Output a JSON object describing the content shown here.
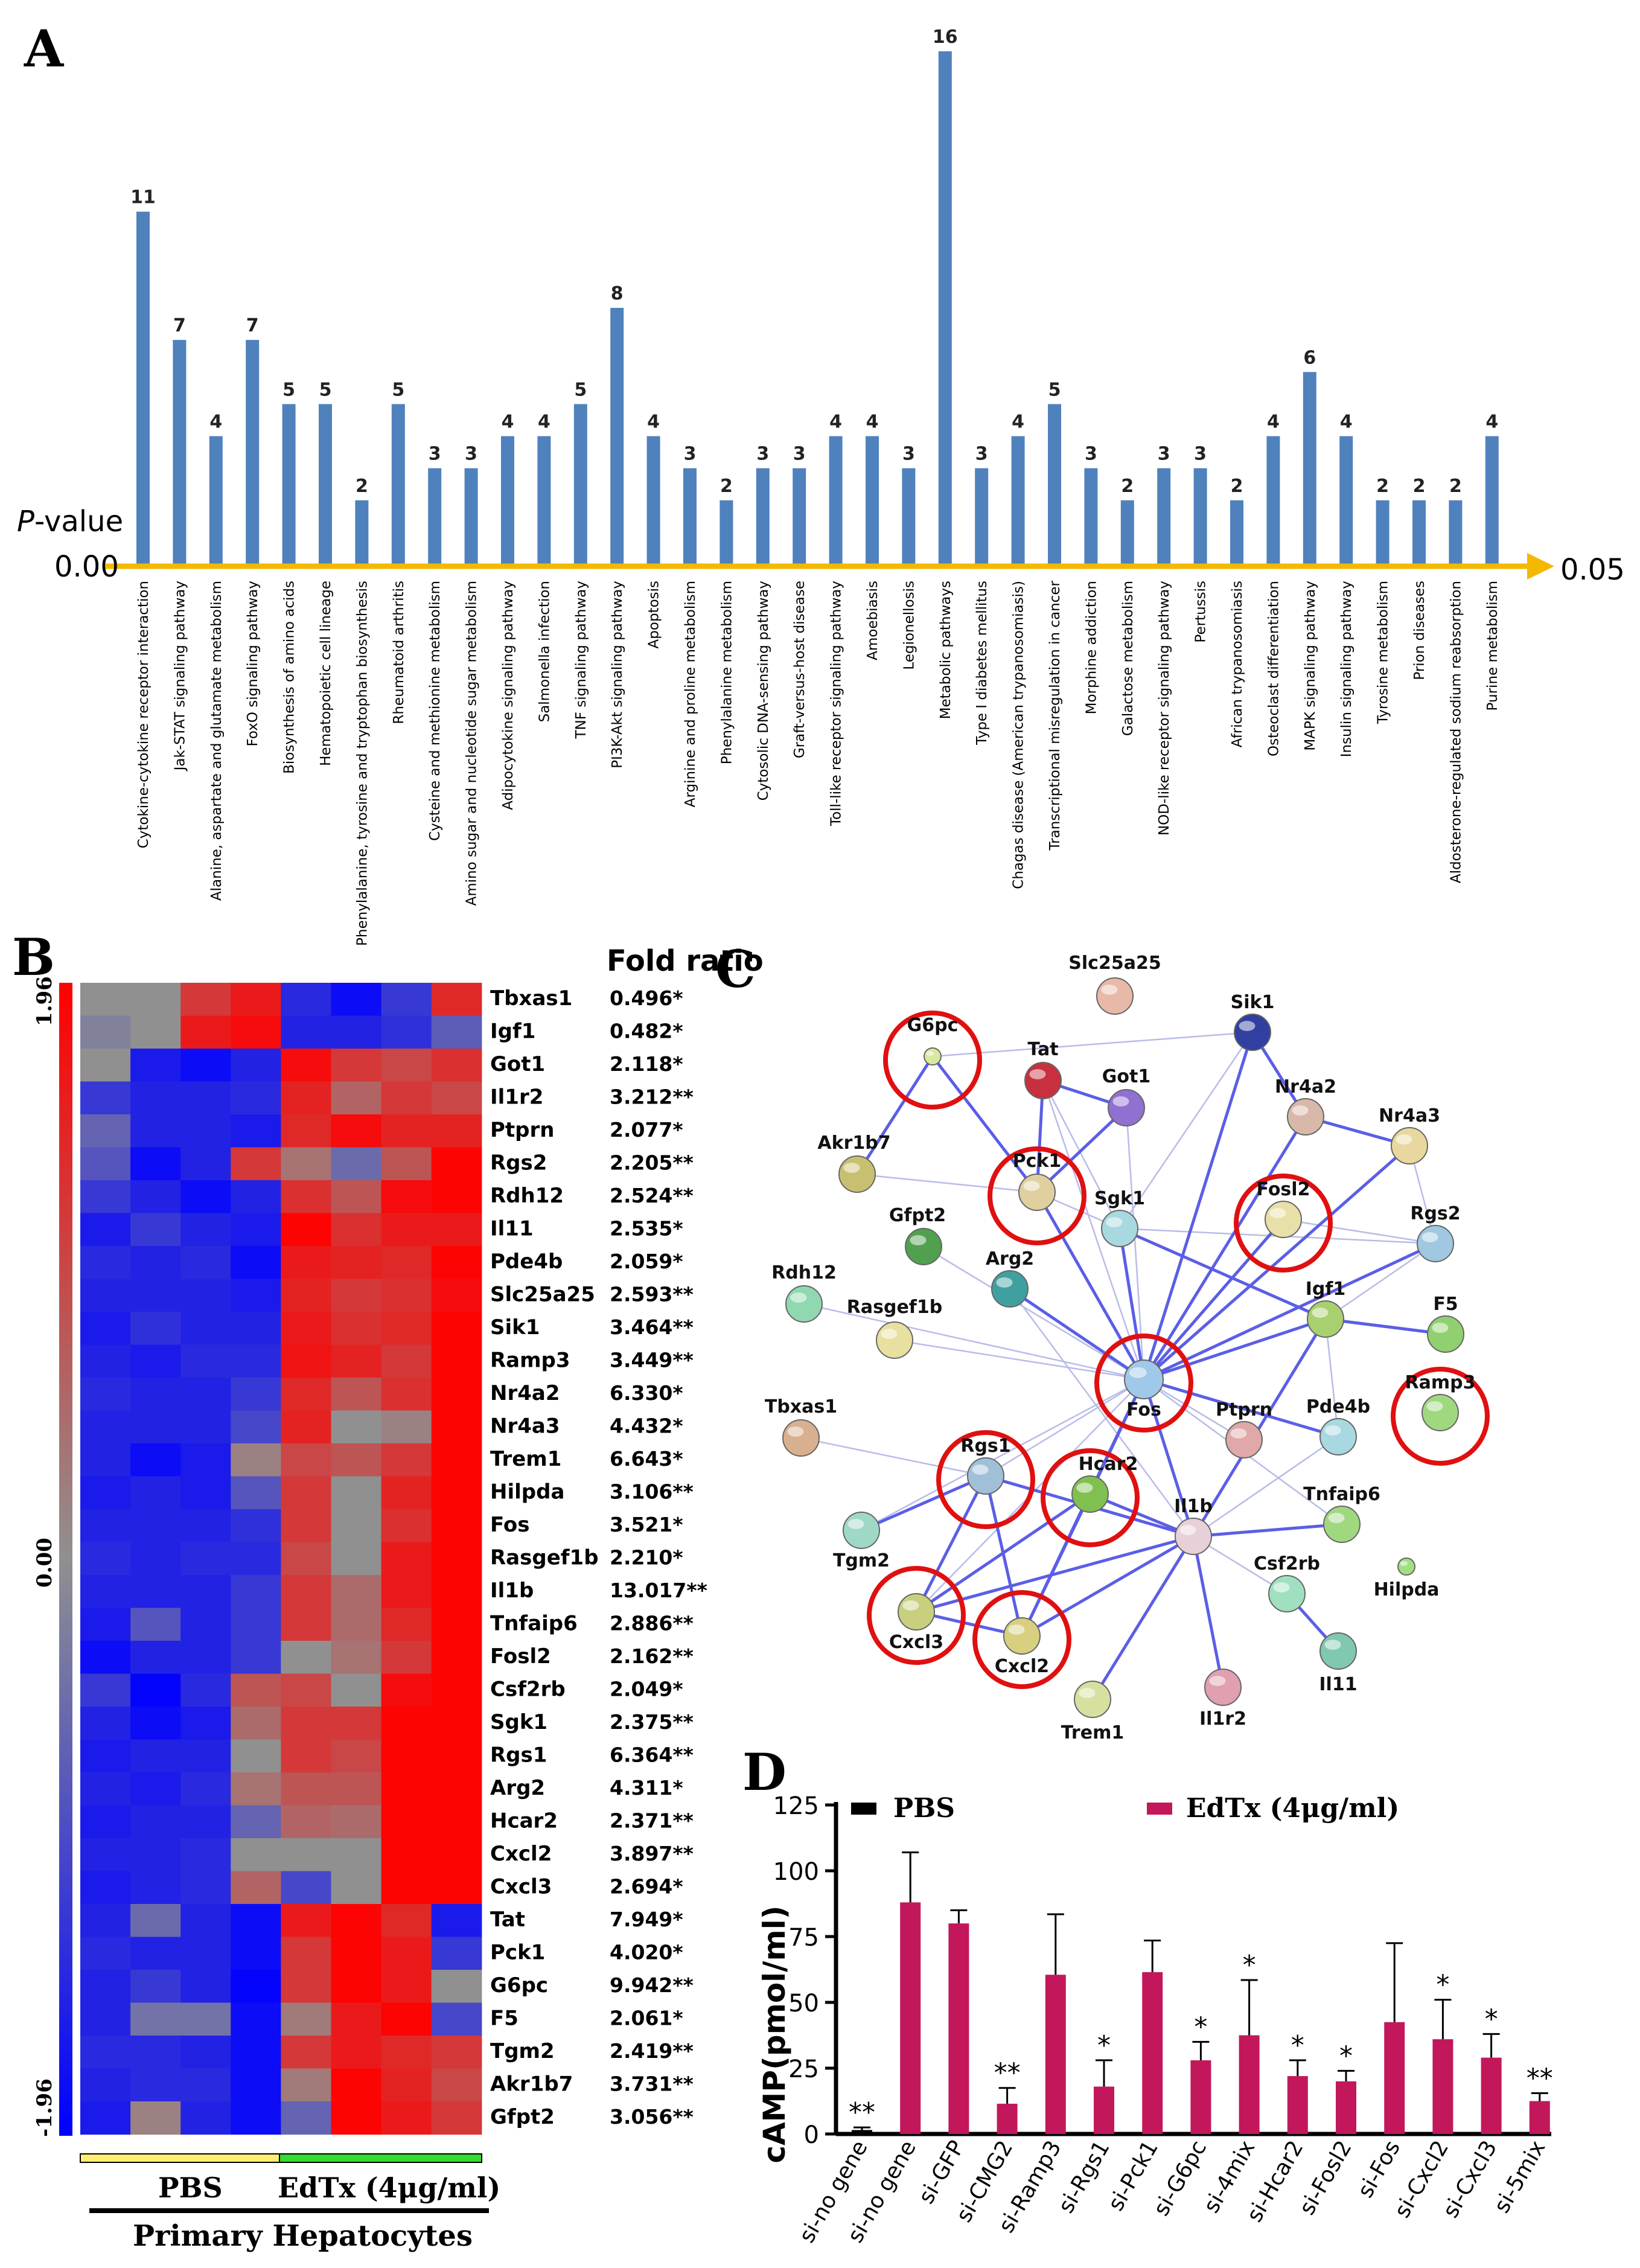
{
  "panelA": {
    "letter": "A",
    "y_label_prefix": "P",
    "y_label_suffix": "-value",
    "axis_start": "0.00",
    "axis_end": "0.05",
    "chart_data": {
      "type": "bar",
      "title": "",
      "xlabel": "",
      "ylabel": "P-value",
      "categories": [
        "Cytokine-cytokine receptor interaction",
        "Jak-STAT signaling pathway",
        "Alanine, aspartate and glutamate metabolism",
        "FoxO signaling pathway",
        "Biosynthesis of amino acids",
        "Hematopoietic cell lineage",
        "Phenylalanine, tyrosine and tryptophan biosynthesis",
        "Rheumatoid arthritis",
        "Cysteine and methionine metabolism",
        "Amino sugar and nucleotide sugar metabolism",
        "Adipocytokine signaling pathway",
        "Salmonella infection",
        "TNF signaling pathway",
        "PI3K-Akt signaling pathway",
        "Apoptosis",
        "Arginine and proline metabolism",
        "Phenylalanine metabolism",
        "Cytosolic DNA-sensing pathway",
        "Graft-versus-host disease",
        "Toll-like receptor signaling pathway",
        "Amoebiasis",
        "Legionellosis",
        "Metabolic pathways",
        "Type I diabetes mellitus",
        "Chagas disease (American trypanosomiasis)",
        "Transcriptional misregulation in cancer",
        "Morphine addiction",
        "Galactose metabolism",
        "NOD-like receptor signaling pathway",
        "Pertussis",
        "African trypanosomiasis",
        "Osteoclast differentiation",
        "MAPK signaling pathway",
        "Insulin signaling pathway",
        "Tyrosine metabolism",
        "Prion diseases",
        "Aldosterone-regulated sodium reabsorption",
        "Purine metabolism"
      ],
      "values": [
        11,
        7,
        4,
        7,
        5,
        5,
        2,
        5,
        3,
        3,
        4,
        4,
        5,
        8,
        4,
        3,
        2,
        3,
        3,
        4,
        4,
        3,
        16,
        3,
        4,
        5,
        3,
        2,
        3,
        3,
        2,
        4,
        6,
        4,
        2,
        2,
        2,
        4
      ],
      "labels": [
        "11",
        "7",
        "4",
        "7",
        "5",
        "5",
        "2",
        "5",
        "3",
        "3",
        "4",
        "4",
        "5",
        "8",
        "4",
        "3",
        "2",
        "3",
        "3",
        "4",
        "4",
        "3",
        "16",
        "3",
        "4",
        "5",
        "3",
        "2",
        "3",
        "3",
        "2",
        "4",
        "6",
        "4",
        "2",
        "2",
        "2",
        "4"
      ],
      "ylim": [
        0,
        16
      ],
      "color": "#4f81bd"
    }
  },
  "panelB": {
    "letter": "B",
    "header": "Fold ratio",
    "scale_top": "1.96",
    "scale_mid": "0.00",
    "scale_bottom": "-1.96",
    "group_pbs": "PBS",
    "group_edtx": "EdTx (4μg/ml)",
    "cell_label": "Primary Hepatocytes",
    "genes": [
      "Tbxas1",
      "Igf1",
      "Got1",
      "Il1r2",
      "Ptprn",
      "Rgs2",
      "Rdh12",
      "Il11",
      "Pde4b",
      "Slc25a25",
      "Sik1",
      "Ramp3",
      "Nr4a2",
      "Nr4a3",
      "Trem1",
      "Hilpda",
      "Fos",
      "Rasgef1b",
      "Il1b",
      "Tnfaip6",
      "Fosl2",
      "Csf2rb",
      "Sgk1",
      "Rgs1",
      "Arg2",
      "Hcar2",
      "Cxcl2",
      "Cxcl3",
      "Tat",
      "Pck1",
      "G6pc",
      "F5",
      "Tgm2",
      "Akr1b7",
      "Gfpt2"
    ],
    "fold_ratios": [
      "0.496*",
      "0.482*",
      "2.118*",
      "3.212**",
      "2.077*",
      "2.205**",
      "2.524**",
      "2.535*",
      "2.059*",
      "2.593**",
      "3.464**",
      "3.449**",
      "6.330*",
      "4.432*",
      "6.643*",
      "3.106**",
      "3.521*",
      "2.210*",
      "13.017**",
      "2.886**",
      "2.162**",
      "2.049*",
      "2.375**",
      "6.364**",
      "4.311*",
      "2.371**",
      "3.897**",
      "2.694*",
      "7.949*",
      "4.020*",
      "9.942**",
      "2.061*",
      "2.419**",
      "3.731**",
      "3.056**"
    ],
    "heat": [
      [
        0,
        0,
        1.2,
        1.6,
        -1.4,
        -1.8,
        -1.2,
        1.4
      ],
      [
        -0.2,
        0,
        1.6,
        1.8,
        -1.5,
        -1.5,
        -1.3,
        -0.7
      ],
      [
        0,
        -1.6,
        -1.8,
        -1.5,
        1.8,
        1.2,
        1.0,
        1.3
      ],
      [
        -1.2,
        -1.5,
        -1.5,
        -1.4,
        1.5,
        0.6,
        1.2,
        1.0
      ],
      [
        -0.6,
        -1.5,
        -1.5,
        -1.6,
        1.4,
        1.8,
        1.5,
        1.5
      ],
      [
        -0.8,
        -1.8,
        -1.5,
        1.2,
        0.4,
        -0.5,
        0.8,
        1.9
      ],
      [
        -1.2,
        -1.5,
        -1.8,
        -1.5,
        1.3,
        0.8,
        1.8,
        1.9
      ],
      [
        -1.6,
        -1.2,
        -1.5,
        -1.6,
        1.9,
        1.3,
        1.6,
        1.6
      ],
      [
        -1.4,
        -1.5,
        -1.4,
        -1.8,
        1.6,
        1.5,
        1.4,
        1.9
      ],
      [
        -1.5,
        -1.5,
        -1.5,
        -1.6,
        1.5,
        1.2,
        1.3,
        1.8
      ],
      [
        -1.6,
        -1.3,
        -1.5,
        -1.5,
        1.6,
        1.3,
        1.4,
        1.9
      ],
      [
        -1.5,
        -1.6,
        -1.4,
        -1.4,
        1.7,
        1.5,
        1.2,
        1.9
      ],
      [
        -1.4,
        -1.5,
        -1.5,
        -1.2,
        1.4,
        0.8,
        1.3,
        1.9
      ],
      [
        -1.5,
        -1.5,
        -1.5,
        -1.0,
        1.5,
        0.0,
        0.2,
        1.9
      ],
      [
        -1.5,
        -1.8,
        -1.6,
        0.2,
        1.0,
        0.8,
        1.2,
        1.9
      ],
      [
        -1.6,
        -1.5,
        -1.6,
        -0.8,
        1.2,
        0.0,
        1.5,
        1.9
      ],
      [
        -1.5,
        -1.5,
        -1.5,
        -1.3,
        1.2,
        0.0,
        1.3,
        1.9
      ],
      [
        -1.4,
        -1.5,
        -1.4,
        -1.4,
        1.0,
        0.0,
        1.6,
        1.9
      ],
      [
        -1.5,
        -1.5,
        -1.5,
        -1.2,
        1.2,
        0.5,
        1.6,
        1.9
      ],
      [
        -1.6,
        -0.8,
        -1.5,
        -1.2,
        1.2,
        0.5,
        1.4,
        1.9
      ],
      [
        -1.8,
        -1.5,
        -1.5,
        -1.2,
        0.0,
        0.4,
        1.2,
        1.9
      ],
      [
        -1.2,
        -1.9,
        -1.4,
        0.8,
        1.0,
        0.0,
        1.8,
        1.9
      ],
      [
        -1.5,
        -1.8,
        -1.6,
        0.5,
        1.2,
        1.2,
        1.9,
        1.9
      ],
      [
        -1.6,
        -1.5,
        -1.5,
        0.0,
        1.2,
        1.0,
        1.9,
        1.9
      ],
      [
        -1.5,
        -1.6,
        -1.4,
        0.4,
        0.8,
        0.8,
        1.9,
        1.9
      ],
      [
        -1.6,
        -1.5,
        -1.5,
        -0.6,
        0.6,
        0.5,
        1.9,
        1.9
      ],
      [
        -1.5,
        -1.5,
        -1.4,
        0.0,
        0.0,
        0.0,
        1.9,
        1.9
      ],
      [
        -1.6,
        -1.5,
        -1.4,
        0.6,
        -1.0,
        0.0,
        1.9,
        1.9
      ],
      [
        -1.5,
        -0.5,
        -1.5,
        -1.8,
        1.6,
        1.9,
        1.4,
        -1.6
      ],
      [
        -1.4,
        -1.5,
        -1.5,
        -1.8,
        1.2,
        1.9,
        1.6,
        -1.2
      ],
      [
        -1.5,
        -1.2,
        -1.5,
        -1.9,
        1.2,
        1.9,
        1.6,
        0.0
      ],
      [
        -1.5,
        -0.4,
        -0.4,
        -1.8,
        0.3,
        1.6,
        1.9,
        -1.0
      ],
      [
        -1.4,
        -1.4,
        -1.5,
        -1.8,
        1.2,
        1.6,
        1.4,
        1.2
      ],
      [
        -1.5,
        -1.4,
        -1.4,
        -1.8,
        0.3,
        1.9,
        1.5,
        1.0
      ],
      [
        -1.6,
        0.2,
        -1.5,
        -1.8,
        -0.6,
        1.9,
        1.6,
        1.2
      ]
    ]
  },
  "panelC": {
    "letter": "C",
    "nodes": [
      {
        "id": "Slc25a25",
        "color": "#e8b8a8",
        "circled": false
      },
      {
        "id": "Sik1",
        "color": "#3040a0",
        "circled": false
      },
      {
        "id": "G6pc",
        "color": "#d8e8a0",
        "circled": true
      },
      {
        "id": "Tat",
        "color": "#c83040",
        "circled": false
      },
      {
        "id": "Got1",
        "color": "#9070d0",
        "circled": false
      },
      {
        "id": "Nr4a2",
        "color": "#d8b8a8",
        "circled": false
      },
      {
        "id": "Nr4a3",
        "color": "#e8d8a0",
        "circled": false
      },
      {
        "id": "Akr1b7",
        "color": "#c8c070",
        "circled": false
      },
      {
        "id": "Pck1",
        "color": "#e0d0a0",
        "circled": true
      },
      {
        "id": "Sgk1",
        "color": "#a8d8e0",
        "circled": false
      },
      {
        "id": "Fosl2",
        "color": "#e8e0a8",
        "circled": true
      },
      {
        "id": "Rgs2",
        "color": "#a0c8e0",
        "circled": false
      },
      {
        "id": "Gfpt2",
        "color": "#50a050",
        "circled": false
      },
      {
        "id": "Rdh12",
        "color": "#90d8b0",
        "circled": false
      },
      {
        "id": "Arg2",
        "color": "#40a0a0",
        "circled": false
      },
      {
        "id": "Igf1",
        "color": "#a8d070",
        "circled": false
      },
      {
        "id": "F5",
        "color": "#90d070",
        "circled": false
      },
      {
        "id": "Rasgef1b",
        "color": "#e8e0a0",
        "circled": false
      },
      {
        "id": "Fos",
        "color": "#a0c8e8",
        "circled": true
      },
      {
        "id": "Ramp3",
        "color": "#a0d880",
        "circled": true
      },
      {
        "id": "Tbxas1",
        "color": "#d8b090",
        "circled": false
      },
      {
        "id": "Ptprn",
        "color": "#e0a8a8",
        "circled": false
      },
      {
        "id": "Pde4b",
        "color": "#a8d8e0",
        "circled": false
      },
      {
        "id": "Rgs1",
        "color": "#a0c0d8",
        "circled": true
      },
      {
        "id": "Hcar2",
        "color": "#80c050",
        "circled": true
      },
      {
        "id": "Tgm2",
        "color": "#a0d8c8",
        "circled": false
      },
      {
        "id": "Il1b",
        "color": "#e8d0d8",
        "circled": false
      },
      {
        "id": "Tnfaip6",
        "color": "#a0d880",
        "circled": false
      },
      {
        "id": "Csf2rb",
        "color": "#a0e0c0",
        "circled": false
      },
      {
        "id": "Hilpda",
        "color": "#a0e080",
        "circled": false
      },
      {
        "id": "Cxcl3",
        "color": "#c8d080",
        "circled": true
      },
      {
        "id": "Cxcl2",
        "color": "#d8d080",
        "circled": true
      },
      {
        "id": "Il11",
        "color": "#80c8b0",
        "circled": false
      },
      {
        "id": "Trem1",
        "color": "#d8e0a0",
        "circled": false
      },
      {
        "id": "Il1r2",
        "color": "#e0a0b0",
        "circled": false
      }
    ],
    "edges": [
      [
        "G6pc",
        "Pck1"
      ],
      [
        "G6pc",
        "Akr1b7"
      ],
      [
        "Pck1",
        "Got1"
      ],
      [
        "Pck1",
        "Fos"
      ],
      [
        "Pck1",
        "Tat"
      ],
      [
        "Sik1",
        "Fos"
      ],
      [
        "Sik1",
        "Nr4a2"
      ],
      [
        "Nr4a2",
        "Nr4a3"
      ],
      [
        "Nr4a2",
        "Fos"
      ],
      [
        "Fos",
        "Fosl2"
      ],
      [
        "Fos",
        "Igf1"
      ],
      [
        "Fos",
        "Il1b"
      ],
      [
        "Fos",
        "Arg2"
      ],
      [
        "Fos",
        "Rgs2"
      ],
      [
        "Fos",
        "Hcar2"
      ],
      [
        "Fos",
        "Pde4b"
      ],
      [
        "Fos",
        "Sgk1"
      ],
      [
        "Fos",
        "Nr4a3"
      ],
      [
        "Fos",
        "Cxcl2"
      ],
      [
        "Igf1",
        "F5"
      ],
      [
        "Rgs1",
        "Cxcl3"
      ],
      [
        "Rgs1",
        "Cxcl2"
      ],
      [
        "Rgs1",
        "Il1b"
      ],
      [
        "Hcar2",
        "Cxcl3"
      ],
      [
        "Hcar2",
        "Cxcl2"
      ],
      [
        "Hcar2",
        "Il1b"
      ],
      [
        "Il1b",
        "Cxcl2"
      ],
      [
        "Il1b",
        "Cxcl3"
      ],
      [
        "Il1b",
        "Il1r2"
      ],
      [
        "Il1b",
        "Tnfaip6"
      ],
      [
        "Il1b",
        "Trem1"
      ],
      [
        "Cxcl2",
        "Cxcl3"
      ],
      [
        "Csf2rb",
        "Il11"
      ],
      [
        "Rgs1",
        "Tgm2"
      ],
      [
        "Il1b",
        "Igf1"
      ],
      [
        "Tat",
        "Got1"
      ],
      [
        "Sgk1",
        "Igf1"
      ]
    ]
  },
  "panelD": {
    "letter": "D",
    "legend_pbs": "PBS",
    "legend_edtx": "EdTx (4μg/ml)",
    "chart_data": {
      "type": "bar",
      "ylabel": "cAMP(pmol/ml)",
      "ylim": [
        0,
        125
      ],
      "yticks": [
        "0",
        "25",
        "50",
        "75",
        "100",
        "125"
      ],
      "categories": [
        "si-no gene",
        "si-no gene",
        "si-GFP",
        "si-CMG2",
        "si-Ramp3",
        "si-Rgs1",
        "si-Pck1",
        "si-G6pc",
        "si-4mix",
        "si-Hcar2",
        "si-Fosl2",
        "si-Fos",
        "si-Cxcl2",
        "si-Cxcl3",
        "si-5mix"
      ],
      "values": [
        1.5,
        88,
        80,
        11.5,
        60.5,
        18,
        61.5,
        28,
        37.5,
        22,
        20,
        42.5,
        36,
        29,
        12.5
      ],
      "errors": [
        1,
        19,
        5,
        6,
        23,
        10,
        12,
        7,
        21,
        6,
        4,
        30,
        15,
        9,
        3
      ],
      "significance": [
        "**",
        "",
        "",
        "**",
        "",
        "*",
        "",
        "*",
        "*",
        "*",
        "*",
        "",
        "*",
        "*",
        "**"
      ],
      "series_name": [
        "PBS",
        "EdTx (4μg/ml)",
        "EdTx (4μg/ml)",
        "EdTx (4μg/ml)",
        "EdTx (4μg/ml)",
        "EdTx (4μg/ml)",
        "EdTx (4μg/ml)",
        "EdTx (4μg/ml)",
        "EdTx (4μg/ml)",
        "EdTx (4μg/ml)",
        "EdTx (4μg/ml)",
        "EdTx (4μg/ml)",
        "EdTx (4μg/ml)",
        "EdTx (4μg/ml)",
        "EdTx (4μg/ml)"
      ],
      "colors": {
        "PBS": "#000000",
        "EdTx": "#c2185b"
      }
    }
  }
}
